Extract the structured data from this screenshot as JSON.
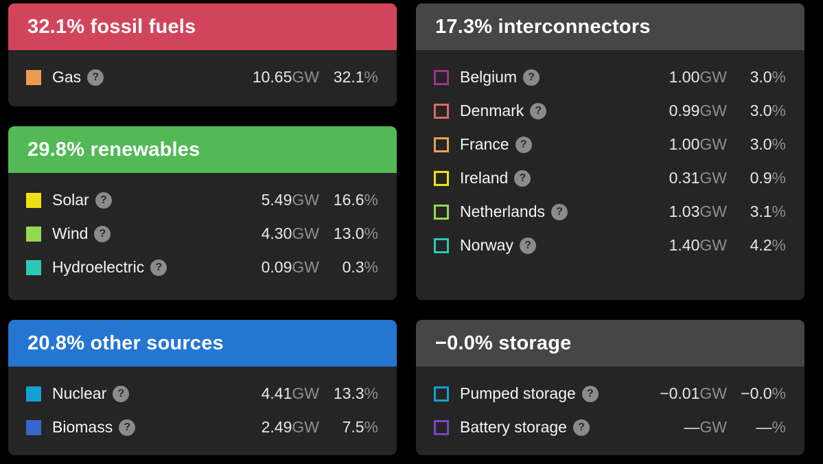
{
  "page": {
    "background": "#000000",
    "panel_bg": "#252525",
    "neutral_header_bg": "#464646",
    "unit_color": "#8f8f8f"
  },
  "icons": {
    "help": "?"
  },
  "panels": {
    "fossil": {
      "title": "32.1% fossil fuels",
      "header_bg": "#d2445a",
      "swatch_style": "filled",
      "rows": [
        {
          "label": "Gas",
          "swatch": "#eb9b4e",
          "value": "10.65",
          "unit": "GW",
          "percent": "32.1",
          "psign": "%"
        }
      ]
    },
    "renewables": {
      "title": "29.8% renewables",
      "header_bg": "#52b955",
      "swatch_style": "filled",
      "rows": [
        {
          "label": "Solar",
          "swatch": "#f0df0c",
          "value": "5.49",
          "unit": "GW",
          "percent": "16.6",
          "psign": "%"
        },
        {
          "label": "Wind",
          "swatch": "#95d94e",
          "value": "4.30",
          "unit": "GW",
          "percent": "13.0",
          "psign": "%"
        },
        {
          "label": "Hydroelectric",
          "swatch": "#2bc9b4",
          "value": "0.09",
          "unit": "GW",
          "percent": "0.3",
          "psign": "%"
        }
      ]
    },
    "other": {
      "title": "20.8% other sources",
      "header_bg": "#2576d0",
      "swatch_style": "filled",
      "rows": [
        {
          "label": "Nuclear",
          "swatch": "#13a0d2",
          "value": "4.41",
          "unit": "GW",
          "percent": "13.3",
          "psign": "%"
        },
        {
          "label": "Biomass",
          "swatch": "#3667cd",
          "value": "2.49",
          "unit": "GW",
          "percent": "7.5",
          "psign": "%"
        }
      ]
    },
    "interconnectors": {
      "title": "17.3% interconnectors",
      "header_bg": "#464646",
      "swatch_style": "outline",
      "rows": [
        {
          "label": "Belgium",
          "swatch": "#a03193",
          "value": "1.00",
          "unit": "GW",
          "percent": "3.0",
          "psign": "%"
        },
        {
          "label": "Denmark",
          "swatch": "#d96b66",
          "value": "0.99",
          "unit": "GW",
          "percent": "3.0",
          "psign": "%"
        },
        {
          "label": "France",
          "swatch": "#e9a251",
          "value": "1.00",
          "unit": "GW",
          "percent": "3.0",
          "psign": "%"
        },
        {
          "label": "Ireland",
          "swatch": "#f1e211",
          "value": "0.31",
          "unit": "GW",
          "percent": "0.9",
          "psign": "%"
        },
        {
          "label": "Netherlands",
          "swatch": "#8fd954",
          "value": "1.03",
          "unit": "GW",
          "percent": "3.1",
          "psign": "%"
        },
        {
          "label": "Norway",
          "swatch": "#2cc8b4",
          "value": "1.40",
          "unit": "GW",
          "percent": "4.2",
          "psign": "%"
        }
      ]
    },
    "storage": {
      "title": "−0.0% storage",
      "header_bg": "#464646",
      "swatch_style": "outline",
      "rows": [
        {
          "label": "Pumped storage",
          "swatch": "#179fd6",
          "value": "−0.01",
          "unit": "GW",
          "percent": "−0.0",
          "psign": "%"
        },
        {
          "label": "Battery storage",
          "swatch": "#8142c6",
          "value": "—",
          "unit": "GW",
          "percent": "—",
          "psign": "%"
        }
      ]
    }
  }
}
